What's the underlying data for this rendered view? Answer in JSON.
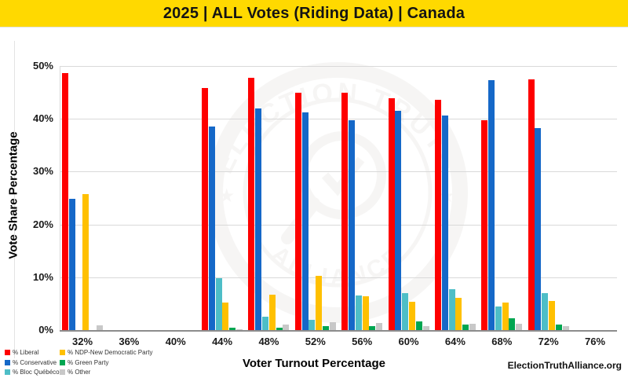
{
  "header": {
    "title": "2025 | ALL Votes (Riding Data) | Canada",
    "bg_color": "#FFD900",
    "text_color": "#141414"
  },
  "chart_data": {
    "type": "bar",
    "title": "2025 | ALL Votes (Riding Data) | Canada",
    "xlabel": "Voter Turnout Percentage",
    "ylabel": "Vote Share Percentage",
    "ylim": [
      0,
      50
    ],
    "ytick_labels": [
      "0%",
      "10%",
      "20%",
      "30%",
      "40%",
      "50%"
    ],
    "grid": true,
    "legend_position": "bottom-left",
    "categories": [
      "32%",
      "36%",
      "40%",
      "44%",
      "48%",
      "52%",
      "56%",
      "60%",
      "64%",
      "68%",
      "72%",
      "76%"
    ],
    "series": [
      {
        "name": "% Liberal",
        "color": "#FE0000",
        "values": [
          48.6,
          null,
          null,
          45.8,
          47.7,
          44.9,
          45.0,
          43.9,
          43.6,
          39.8,
          47.5,
          null
        ]
      },
      {
        "name": "% Conservative",
        "color": "#1568C8",
        "values": [
          24.8,
          null,
          null,
          38.5,
          42.0,
          41.2,
          39.7,
          41.5,
          40.6,
          47.3,
          38.3,
          null
        ]
      },
      {
        "name": "% Bloc Québécois",
        "color": "#4EBEC7",
        "values": [
          0,
          null,
          null,
          9.8,
          2.6,
          2.0,
          6.6,
          7.0,
          7.8,
          4.4,
          7.0,
          null
        ]
      },
      {
        "name": "% NDP-New Democratic Party",
        "color": "#FFC000",
        "values": [
          25.8,
          null,
          null,
          5.2,
          6.7,
          10.3,
          6.4,
          5.3,
          6.1,
          5.2,
          5.5,
          null
        ]
      },
      {
        "name": "% Green Party",
        "color": "#00A651",
        "values": [
          0,
          null,
          null,
          0.5,
          0.5,
          0.7,
          0.8,
          1.6,
          1.1,
          2.2,
          1.0,
          null
        ]
      },
      {
        "name": "% Other",
        "color": "#C8C8C8",
        "values": [
          0.9,
          null,
          null,
          0.2,
          1.0,
          1.5,
          1.3,
          0.8,
          1.2,
          1.2,
          0.7,
          null
        ]
      }
    ]
  },
  "watermark": {
    "arc_top": "ELECTION TRUTH",
    "arc_bottom": "ALLIANCE",
    "star": "★"
  },
  "footer": {
    "brand": "ElectionTruthAlliance.org"
  }
}
